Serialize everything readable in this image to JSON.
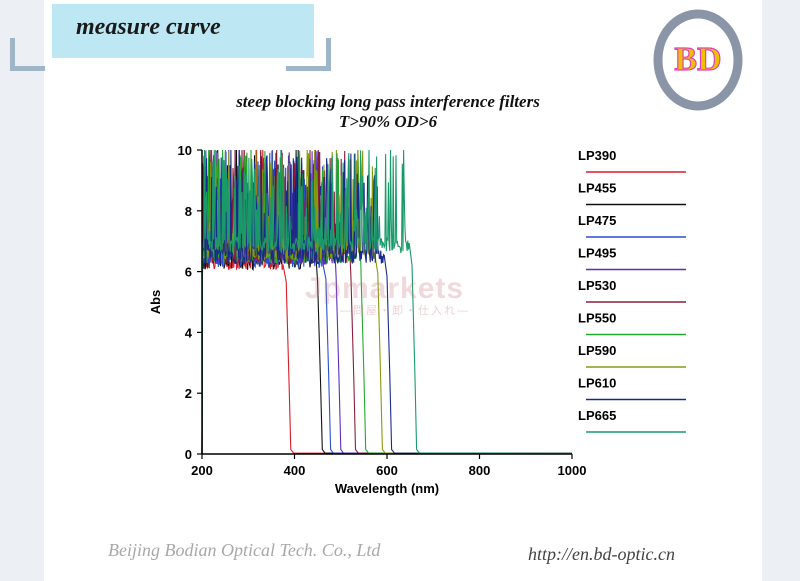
{
  "header": {
    "title": "measure curve"
  },
  "logo": {
    "text": "BD",
    "colors": [
      "#8a96a8",
      "#f0c000",
      "#e040c0"
    ]
  },
  "footer": {
    "company": "Beijing Bodian Optical Tech. Co., Ltd",
    "url": "http://en.bd-optic.cn"
  },
  "watermark": {
    "text": "Jpmarkets",
    "sub": "—問屋・卸・仕入れ—"
  },
  "chart_data": {
    "type": "line",
    "title": "steep blocking long pass interference filters",
    "subtitle": "T>90% OD>6",
    "xlabel": "Wavelength (nm)",
    "ylabel": "Abs",
    "xlim": [
      200,
      1000
    ],
    "ylim": [
      0,
      10
    ],
    "xticks": [
      "200",
      "400",
      "600",
      "800",
      "1000"
    ],
    "yticks": [
      "0",
      "2",
      "4",
      "6",
      "8",
      "10"
    ],
    "legend_position": "right",
    "series": [
      {
        "name": "LP390",
        "color": "#d81e2a",
        "cut_on": 390,
        "plateau": 6.3
      },
      {
        "name": "LP455",
        "color": "#111111",
        "cut_on": 458,
        "plateau": 6.3
      },
      {
        "name": "LP475",
        "color": "#2a4fd0",
        "cut_on": 476,
        "plateau": 6.4
      },
      {
        "name": "LP495",
        "color": "#5a2fc0",
        "cut_on": 498,
        "plateau": 6.5
      },
      {
        "name": "LP530",
        "color": "#8a1f3a",
        "cut_on": 530,
        "plateau": 6.5
      },
      {
        "name": "LP550",
        "color": "#22aa2a",
        "cut_on": 552,
        "plateau": 6.5
      },
      {
        "name": "LP590",
        "color": "#8a9a10",
        "cut_on": 588,
        "plateau": 6.6
      },
      {
        "name": "LP610",
        "color": "#1a2a8a",
        "cut_on": 608,
        "plateau": 6.5
      },
      {
        "name": "LP665",
        "color": "#1a9a6a",
        "cut_on": 662,
        "plateau": 6.9
      }
    ]
  }
}
